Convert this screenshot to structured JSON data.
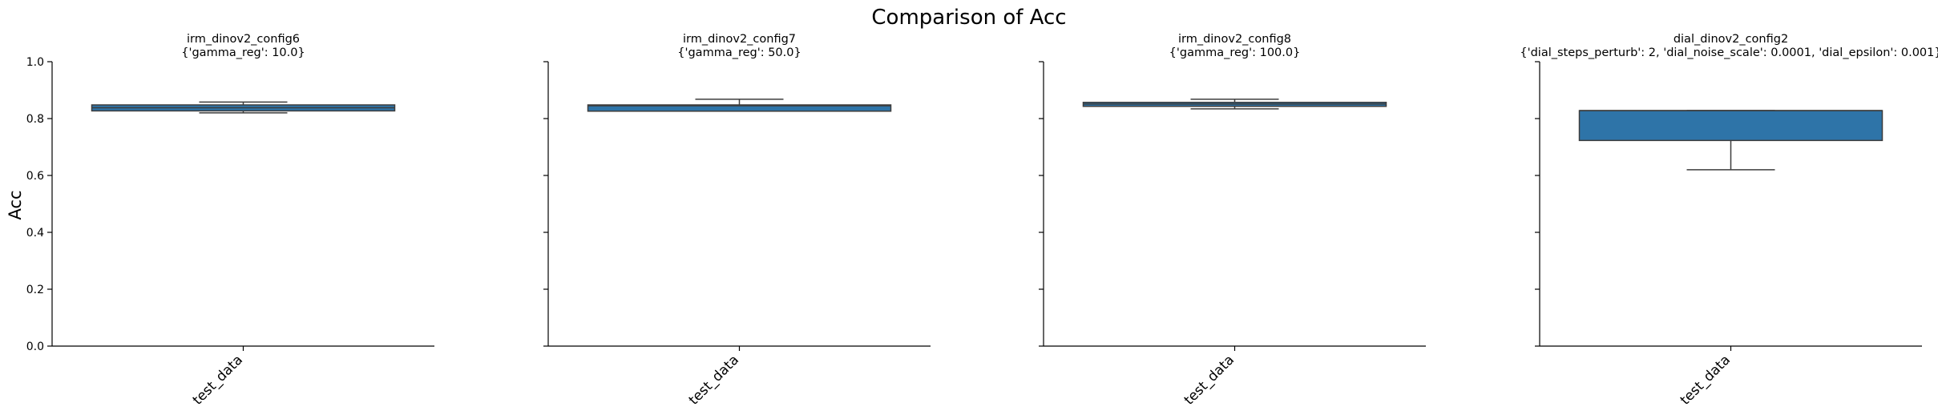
{
  "chart_data": {
    "type": "box",
    "title": "Comparison of Acc",
    "ylabel": "Acc",
    "ylim": [
      0.0,
      1.0
    ],
    "yticks": [
      "0.0",
      "0.2",
      "0.4",
      "0.6",
      "0.8",
      "1.0"
    ],
    "box_color": "#2e74a8",
    "panels": [
      {
        "title": "irm_dinov2_config6",
        "subtitle": "{'gamma_reg': 10.0}",
        "category": "test_data",
        "whisker_low": 0.82,
        "q1": 0.827,
        "median": 0.838,
        "q3": 0.848,
        "whisker_high": 0.858
      },
      {
        "title": "irm_dinov2_config7",
        "subtitle": "{'gamma_reg': 50.0}",
        "category": "test_data",
        "whisker_low": 0.826,
        "q1": 0.826,
        "median": 0.845,
        "q3": 0.848,
        "whisker_high": 0.868
      },
      {
        "title": "irm_dinov2_config8",
        "subtitle": "{'gamma_reg': 100.0}",
        "category": "test_data",
        "whisker_low": 0.834,
        "q1": 0.843,
        "median": 0.851,
        "q3": 0.857,
        "whisker_high": 0.868
      },
      {
        "title": "dial_dinov2_config2",
        "subtitle": "{'dial_steps_perturb': 2, 'dial_noise_scale': 0.0001, 'dial_epsilon': 0.001}",
        "category": "test_data",
        "whisker_low": 0.62,
        "q1": 0.723,
        "median": 0.828,
        "q3": 0.828,
        "whisker_high": 0.828
      }
    ]
  }
}
